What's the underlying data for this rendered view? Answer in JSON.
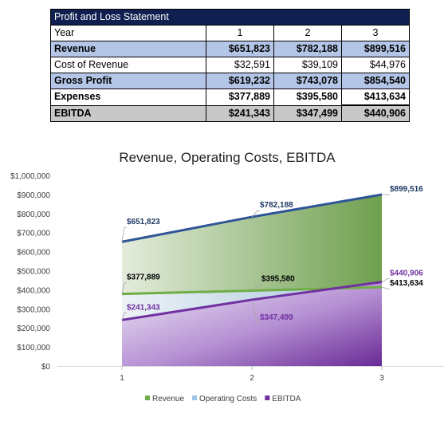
{
  "table": {
    "title": "Profit and Loss Statement",
    "header": {
      "label": "Year",
      "years": [
        "1",
        "2",
        "3"
      ]
    },
    "rows": [
      {
        "label": "Revenue",
        "values": [
          "$651,823",
          "$782,188",
          "$899,516"
        ],
        "style": "blue"
      },
      {
        "label": "Cost of Revenue",
        "values": [
          "$32,591",
          "$39,109",
          "$44,976"
        ],
        "style": "plain"
      },
      {
        "label": "Gross Profit",
        "values": [
          "$619,232",
          "$743,078",
          "$854,540"
        ],
        "style": "blue"
      },
      {
        "label": "Expenses",
        "values": [
          "$377,889",
          "$395,580",
          "$413,634"
        ],
        "style": "plain-bold"
      },
      {
        "label": "EBITDA",
        "values": [
          "$241,343",
          "$347,499",
          "$440,906"
        ],
        "style": "gray"
      }
    ],
    "colors": {
      "title_bg": "#0f1f4f",
      "blue_row": "#b4c6e7",
      "gray_row": "#c8c8c8"
    }
  },
  "chart_data": {
    "type": "area",
    "title": "Revenue, Operating Costs, EBITDA",
    "categories": [
      "1",
      "2",
      "3"
    ],
    "ylim": [
      0,
      1000000
    ],
    "y_ticks": [
      "$0",
      "$100,000",
      "$200,000",
      "$300,000",
      "$400,000",
      "$500,000",
      "$600,000",
      "$700,000",
      "$800,000",
      "$900,000",
      "$1,000,000"
    ],
    "grid": false,
    "legend_position": "bottom",
    "series": [
      {
        "name": "Revenue",
        "values": [
          651823,
          782188,
          899516
        ],
        "labels": [
          "$651,823",
          "$782,188",
          "$899,516"
        ],
        "line_color": "#2f5597",
        "fill_color": "#70ad47",
        "label_color": "#1f3864"
      },
      {
        "name": "Operating Costs",
        "values": [
          377889,
          395580,
          413634
        ],
        "labels": [
          "$377,889",
          "$395,580",
          "$413,634"
        ],
        "line_color": "#70ad47",
        "fill_color": "#9dc3e6",
        "label_color": "#000000"
      },
      {
        "name": "EBITDA",
        "values": [
          241343,
          347499,
          440906
        ],
        "labels": [
          "$241,343",
          "$347,499",
          "$440,906"
        ],
        "line_color": "#7030a0",
        "fill_color": "#7030a0",
        "label_color": "#7030a0"
      }
    ]
  }
}
